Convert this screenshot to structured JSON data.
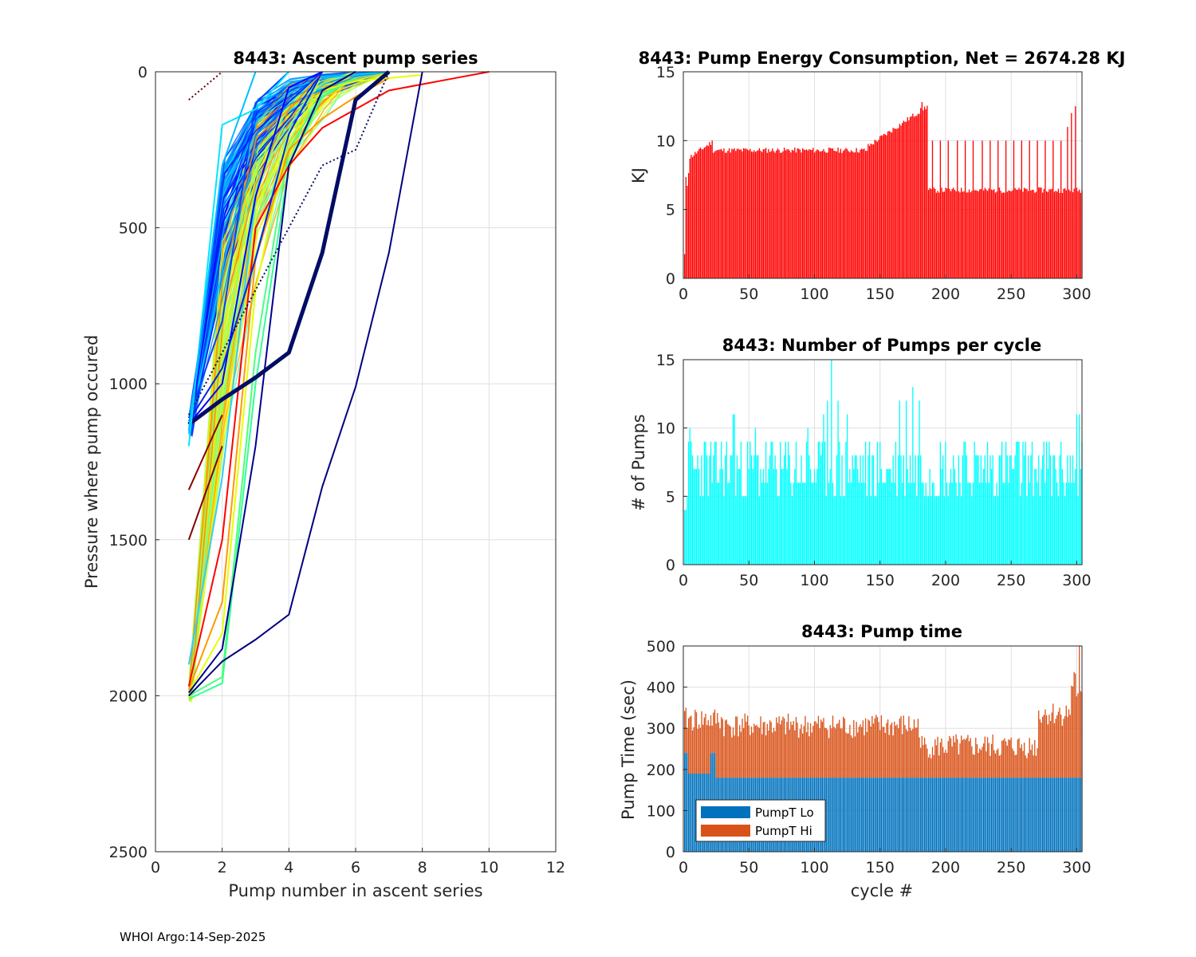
{
  "footer": "WHOI Argo:14-Sep-2025",
  "chart_data": [
    {
      "id": "ascent",
      "type": "line",
      "title": "8443: Ascent pump series",
      "xlabel": "Pump number in ascent series",
      "ylabel": "Pressure where pump occured",
      "xlim": [
        0,
        12
      ],
      "ylim": [
        0,
        2500
      ],
      "y_reversed": true,
      "xticks": [
        0,
        2,
        4,
        6,
        8,
        10,
        12
      ],
      "yticks": [
        0,
        500,
        1000,
        1500,
        2000,
        2500
      ],
      "grid": true,
      "colormap": "jet (colored by cycle number)",
      "series": [
        {
          "name": "deep-2000-green",
          "color": "#32ff96",
          "x": [
            1,
            2,
            3,
            4,
            5,
            6
          ],
          "y": [
            2010,
            1960,
            1000,
            300,
            80,
            20
          ]
        },
        {
          "name": "deep-2000-green-b",
          "color": "#4dff7a",
          "x": [
            1,
            2,
            3,
            4,
            5,
            6
          ],
          "y": [
            2000,
            1940,
            900,
            250,
            70,
            20
          ]
        },
        {
          "name": "deep-2000-yellow",
          "color": "#e6ff00",
          "x": [
            1,
            2,
            3,
            4,
            5,
            6,
            8
          ],
          "y": [
            1990,
            1800,
            700,
            200,
            60,
            30,
            10
          ]
        },
        {
          "name": "deep-2000-orange",
          "color": "#ff9900",
          "x": [
            1,
            2,
            3,
            4,
            5,
            6,
            7
          ],
          "y": [
            1980,
            1700,
            600,
            250,
            150,
            80,
            20
          ]
        },
        {
          "name": "deep-2000-red",
          "color": "#ff0000",
          "x": [
            1,
            2,
            3,
            4,
            5,
            6,
            7,
            8,
            9,
            10
          ],
          "y": [
            1970,
            1500,
            500,
            300,
            180,
            120,
            60,
            40,
            20,
            0
          ]
        },
        {
          "name": "deep-2000-lightblue",
          "color": "#33ccff",
          "x": [
            1,
            2,
            3,
            4,
            5
          ],
          "y": [
            1900,
            1300,
            400,
            50,
            0
          ]
        },
        {
          "name": "deep-2000-navy",
          "color": "#000080",
          "x": [
            1,
            2,
            3,
            4,
            5,
            6,
            7,
            8
          ],
          "y": [
            2000,
            1890,
            1820,
            1740,
            1330,
            1010,
            580,
            0
          ]
        },
        {
          "name": "deep-2000-navy-b",
          "color": "#00008f",
          "x": [
            1,
            2,
            3,
            4,
            5,
            6
          ],
          "y": [
            1990,
            1850,
            1200,
            300,
            60,
            0
          ]
        },
        {
          "name": "park-1100-blue",
          "color": "#0000ff",
          "x": [
            1,
            2,
            3,
            4,
            5
          ],
          "y": [
            1130,
            1000,
            400,
            50,
            0
          ]
        },
        {
          "name": "park-1100-blue-b",
          "color": "#0022ee",
          "x": [
            1,
            2,
            3,
            4,
            5
          ],
          "y": [
            1120,
            950,
            600,
            200,
            0
          ]
        },
        {
          "name": "park-1100-blue-c",
          "color": "#0044ff",
          "x": [
            1,
            2,
            3,
            4
          ],
          "y": [
            1110,
            800,
            100,
            0
          ]
        },
        {
          "name": "park-1100-navy-thick",
          "color": "#000c66",
          "x": [
            1,
            2,
            3,
            4,
            5,
            6,
            7
          ],
          "y": [
            1130,
            1050,
            980,
            900,
            580,
            90,
            0
          ]
        },
        {
          "name": "park-1100-navy-dotted",
          "color": "#000c66",
          "x": [
            1,
            2,
            3,
            4,
            5,
            6,
            7
          ],
          "y": [
            1100,
            900,
            700,
            500,
            300,
            250,
            0
          ]
        },
        {
          "name": "park-1200-cyan",
          "color": "#00e5ff",
          "x": [
            1,
            2,
            3,
            4
          ],
          "y": [
            1200,
            170,
            120,
            0
          ]
        },
        {
          "name": "park-1200-cyan-b",
          "color": "#00bfff",
          "x": [
            1,
            2,
            3
          ],
          "y": [
            1150,
            300,
            0
          ]
        },
        {
          "name": "early-darkred",
          "color": "#800000",
          "x": [
            1,
            2
          ],
          "y": [
            1500,
            1200
          ]
        },
        {
          "name": "early-darkred-b",
          "color": "#8b0000",
          "x": [
            1,
            2
          ],
          "y": [
            1340,
            1100
          ]
        },
        {
          "name": "early-darkred-dotted",
          "color": "#660000",
          "x": [
            1,
            2
          ],
          "y": [
            90,
            0
          ]
        }
      ]
    },
    {
      "id": "energy",
      "type": "bar",
      "title": "8443: Pump Energy Consumption,  Net = 2674.28 KJ",
      "xlabel": "",
      "ylabel": "KJ",
      "xlim": [
        0,
        304
      ],
      "ylim": [
        0,
        15
      ],
      "xticks": [
        0,
        50,
        100,
        150,
        200,
        250,
        300
      ],
      "yticks": [
        0,
        5,
        10,
        15
      ],
      "grid": true,
      "color": "#ff0000",
      "x_range": [
        1,
        304
      ],
      "segments": [
        {
          "from": 1,
          "to": 1,
          "value": 1.7
        },
        {
          "from": 2,
          "to": 2,
          "value": 7.2
        },
        {
          "from": 3,
          "to": 3,
          "value": 6.8
        },
        {
          "from": 4,
          "to": 4,
          "value": 7.8
        },
        {
          "from": 5,
          "to": 22,
          "value_start": 8.8,
          "value_end": 9.9
        },
        {
          "from": 23,
          "to": 140,
          "value": 9.3
        },
        {
          "from": 141,
          "to": 186,
          "value_start": 9.6,
          "value_end": 12.5
        },
        {
          "from": 187,
          "to": 304,
          "value": 6.4
        }
      ],
      "spikes": [
        {
          "cycle": 182,
          "value": 12.8
        },
        {
          "cycle": 190,
          "value": 10.0
        },
        {
          "cycle": 196,
          "value": 10.0
        },
        {
          "cycle": 202,
          "value": 10.0
        },
        {
          "cycle": 209,
          "value": 10.0
        },
        {
          "cycle": 215,
          "value": 10.0
        },
        {
          "cycle": 221,
          "value": 10.0
        },
        {
          "cycle": 228,
          "value": 10.0
        },
        {
          "cycle": 234,
          "value": 10.0
        },
        {
          "cycle": 240,
          "value": 10.0
        },
        {
          "cycle": 246,
          "value": 10.0
        },
        {
          "cycle": 252,
          "value": 10.0
        },
        {
          "cycle": 258,
          "value": 10.0
        },
        {
          "cycle": 264,
          "value": 10.0
        },
        {
          "cycle": 270,
          "value": 10.0
        },
        {
          "cycle": 276,
          "value": 10.0
        },
        {
          "cycle": 282,
          "value": 10.0
        },
        {
          "cycle": 288,
          "value": 10.0
        },
        {
          "cycle": 293,
          "value": 11.0
        },
        {
          "cycle": 296,
          "value": 12.0
        },
        {
          "cycle": 299,
          "value": 12.5
        }
      ]
    },
    {
      "id": "pumps",
      "type": "bar",
      "title": "8443: Number of Pumps per cycle",
      "xlabel": "",
      "ylabel": "# of Pumps",
      "xlim": [
        0,
        304
      ],
      "ylim": [
        0,
        15
      ],
      "xticks": [
        0,
        50,
        100,
        150,
        200,
        250,
        300
      ],
      "yticks": [
        0,
        5,
        10,
        15
      ],
      "grid": true,
      "color": "#00ffff",
      "x_range": [
        1,
        304
      ],
      "typical_range": [
        5,
        9
      ],
      "peaks": [
        {
          "cycle": 5,
          "value": 10
        },
        {
          "cycle": 38,
          "value": 11
        },
        {
          "cycle": 39,
          "value": 11
        },
        {
          "cycle": 55,
          "value": 10
        },
        {
          "cycle": 95,
          "value": 10
        },
        {
          "cycle": 107,
          "value": 11
        },
        {
          "cycle": 110,
          "value": 12
        },
        {
          "cycle": 113,
          "value": 15
        },
        {
          "cycle": 118,
          "value": 12
        },
        {
          "cycle": 125,
          "value": 11
        },
        {
          "cycle": 165,
          "value": 12
        },
        {
          "cycle": 170,
          "value": 12
        },
        {
          "cycle": 175,
          "value": 13
        },
        {
          "cycle": 180,
          "value": 12
        },
        {
          "cycle": 300,
          "value": 11
        },
        {
          "cycle": 302,
          "value": 11
        }
      ]
    },
    {
      "id": "pumptime",
      "type": "bar",
      "stacked": true,
      "title": "8443: Pump time",
      "xlabel": "cycle #",
      "ylabel": "Pump Time (sec)",
      "xlim": [
        0,
        304
      ],
      "ylim": [
        0,
        500
      ],
      "xticks": [
        0,
        50,
        100,
        150,
        200,
        250,
        300
      ],
      "yticks": [
        0,
        100,
        200,
        300,
        400,
        500
      ],
      "grid": true,
      "legend_position": "bottom-left",
      "x_range": [
        1,
        304
      ],
      "series": [
        {
          "name": "PumpT Lo",
          "color": "#0072bd",
          "baseline_values": [
            {
              "from": 1,
              "to": 3,
              "value": 240
            },
            {
              "from": 4,
              "to": 20,
              "value": 190
            },
            {
              "from": 21,
              "to": 24,
              "value": 240
            },
            {
              "from": 25,
              "to": 304,
              "value": 180
            }
          ]
        },
        {
          "name": "PumpT Hi",
          "color": "#d95319",
          "total_values": [
            {
              "from": 1,
              "to": 30,
              "value": 315
            },
            {
              "from": 31,
              "to": 180,
              "value": 300
            },
            {
              "from": 181,
              "to": 270,
              "value": 250
            },
            {
              "from": 271,
              "to": 304,
              "value": 330
            }
          ],
          "max_total": 500
        }
      ]
    }
  ]
}
